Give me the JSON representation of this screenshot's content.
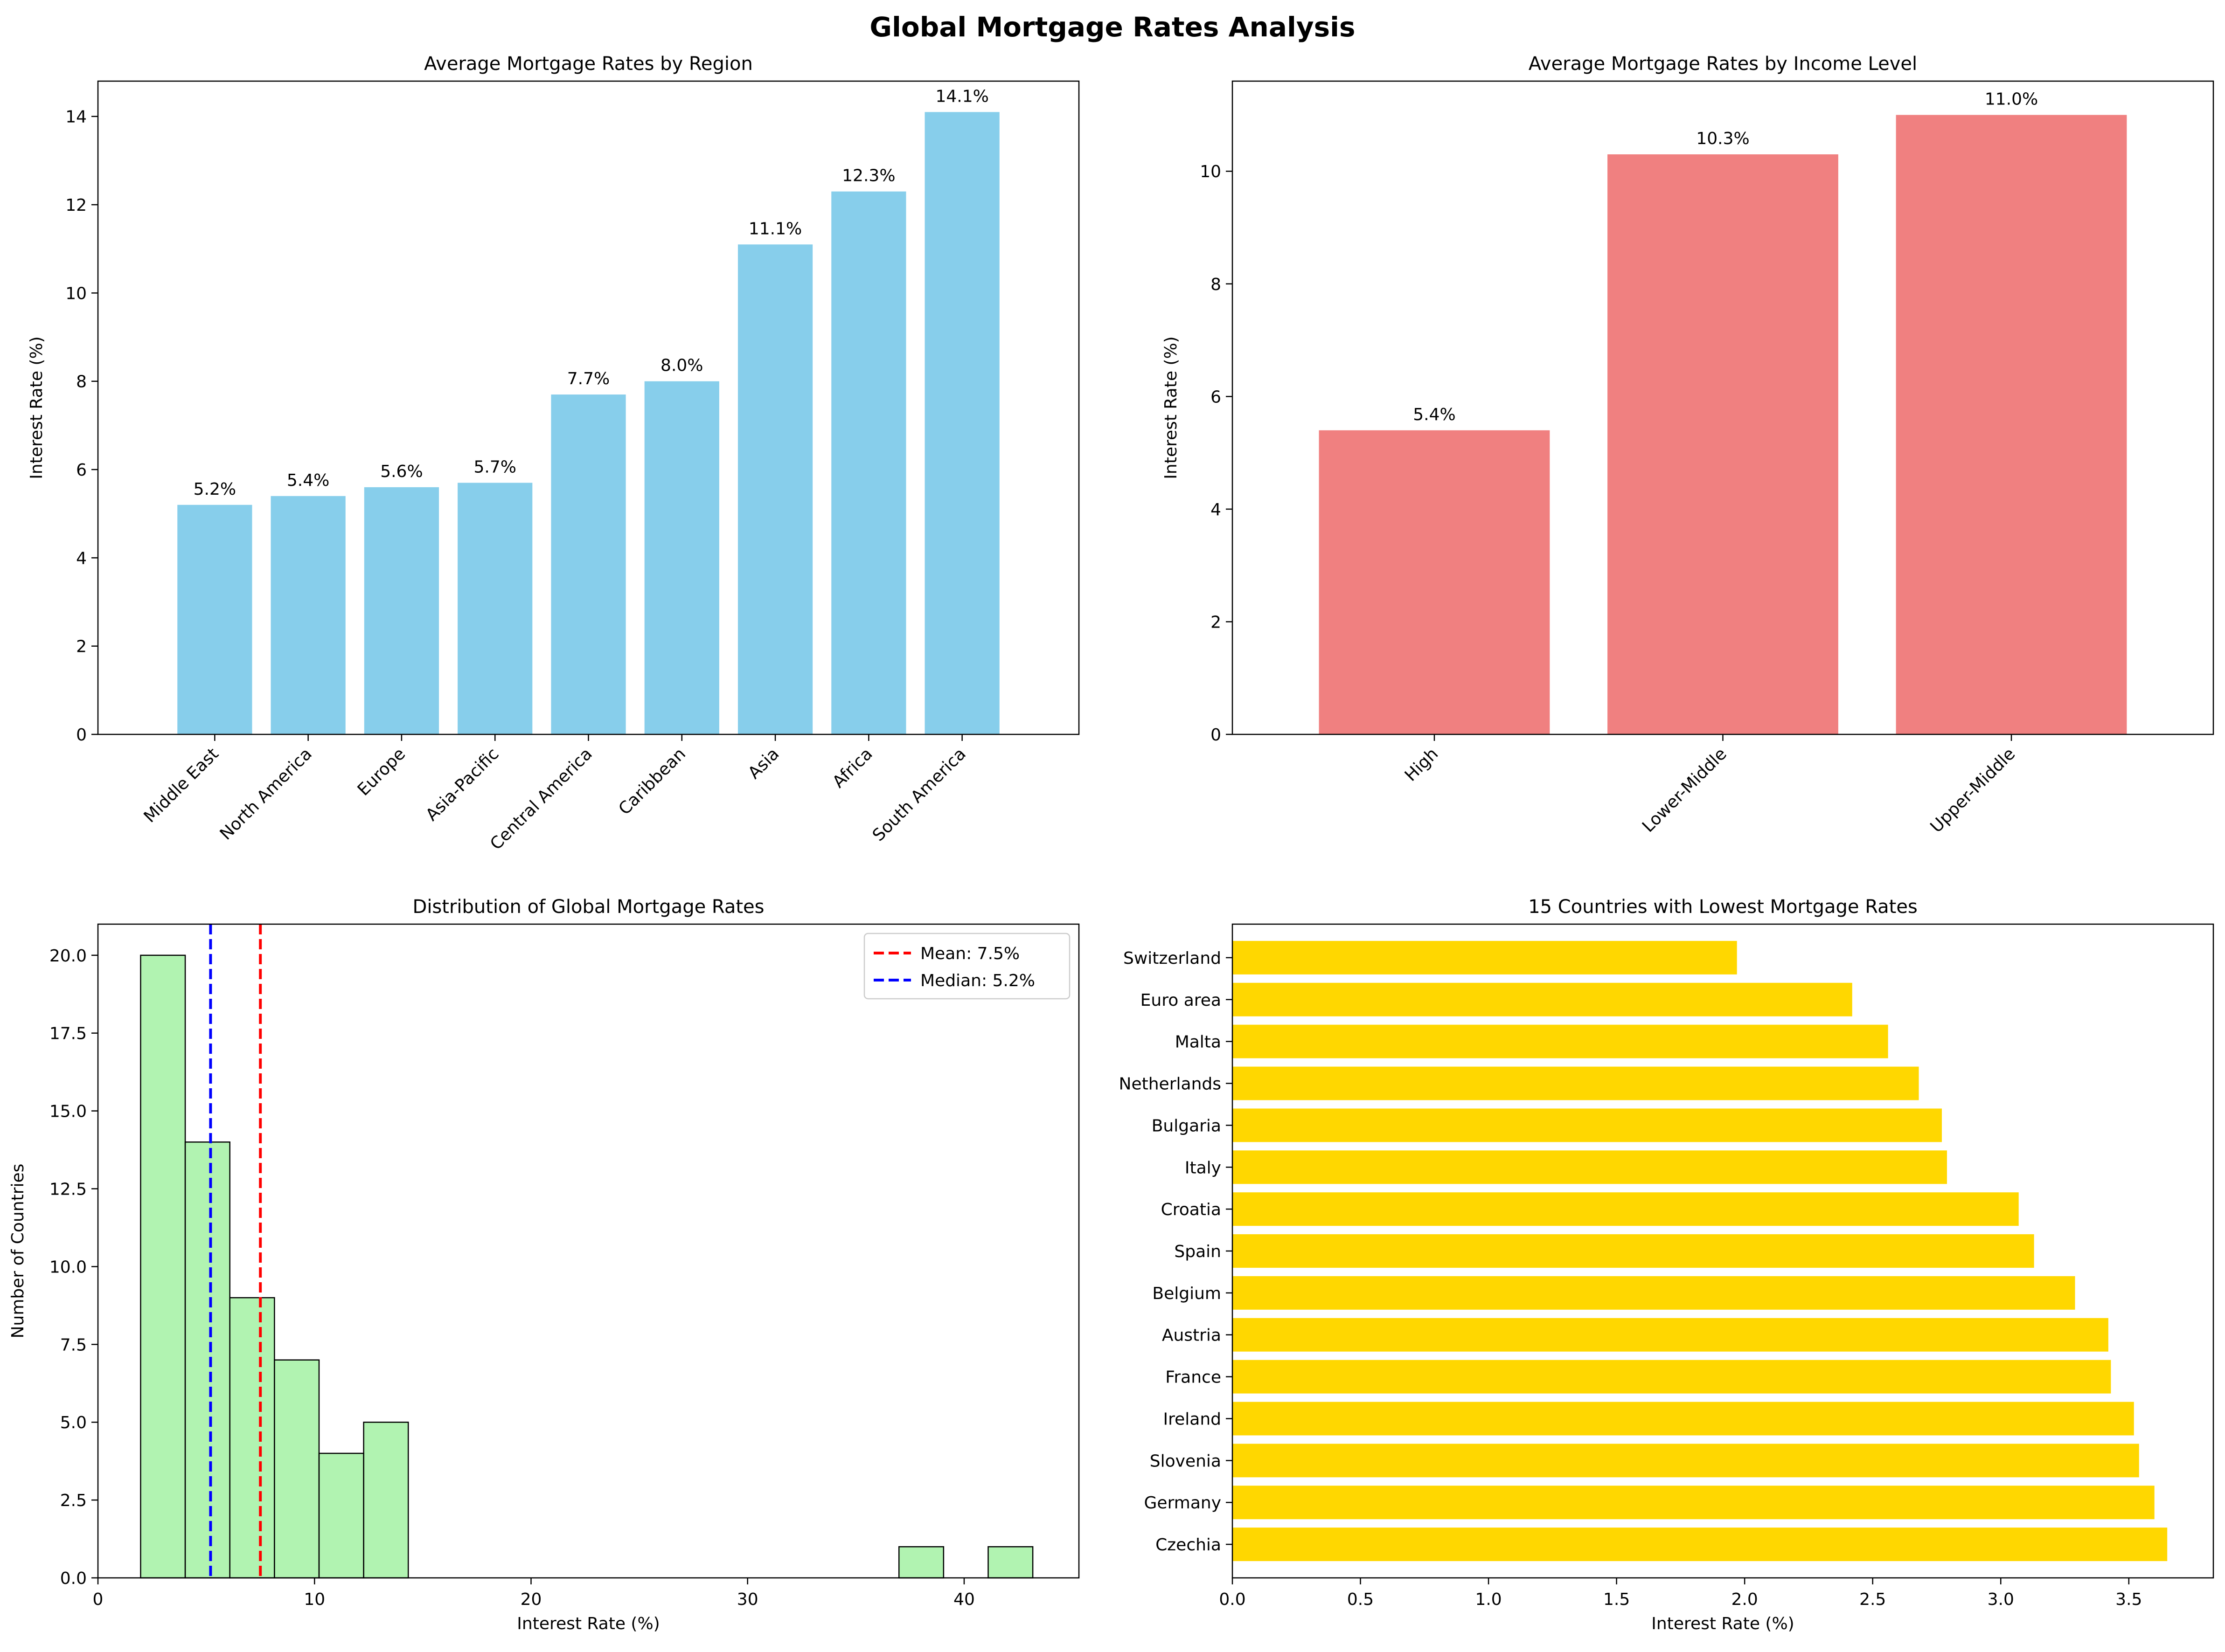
{
  "figure": {
    "title": "Global Mortgage Rates Analysis"
  },
  "chart_data": [
    {
      "type": "bar",
      "title": "Average Mortgage Rates by Region",
      "xlabel": "",
      "ylabel": "Interest Rate (%)",
      "categories": [
        "Middle East",
        "North America",
        "Europe",
        "Asia-Pacific",
        "Central America",
        "Caribbean",
        "Asia",
        "Africa",
        "South America"
      ],
      "values": [
        5.2,
        5.4,
        5.6,
        5.7,
        7.7,
        8.0,
        11.1,
        12.3,
        14.1
      ],
      "value_labels": [
        "5.2%",
        "5.4%",
        "5.6%",
        "5.7%",
        "7.7%",
        "8.0%",
        "11.1%",
        "12.3%",
        "14.1%"
      ],
      "ylim": [
        0,
        14.8
      ],
      "yticks": [
        0,
        2,
        4,
        6,
        8,
        10,
        12,
        14
      ],
      "color": "#87CEEB",
      "grid": false
    },
    {
      "type": "bar",
      "title": "Average Mortgage Rates by Income Level",
      "xlabel": "",
      "ylabel": "Interest Rate (%)",
      "categories": [
        "High",
        "Lower-Middle",
        "Upper-Middle"
      ],
      "values": [
        5.4,
        10.3,
        11.0
      ],
      "value_labels": [
        "5.4%",
        "10.3%",
        "11.0%"
      ],
      "ylim": [
        0,
        11.6
      ],
      "yticks": [
        0,
        2,
        4,
        6,
        8,
        10
      ],
      "color": "#F08080",
      "grid": false
    },
    {
      "type": "histogram",
      "title": "Distribution of Global Mortgage Rates",
      "xlabel": "Interest Rate (%)",
      "ylabel": "Number of Countries",
      "bin_start": 1.97,
      "bin_width": 2.06,
      "counts": [
        20,
        14,
        9,
        7,
        4,
        5,
        0,
        0,
        0,
        0,
        0,
        0,
        0,
        0,
        0,
        0,
        0,
        1,
        0,
        1
      ],
      "xlim": [
        0,
        45.3
      ],
      "ylim": [
        0,
        21
      ],
      "xticks": [
        0,
        10,
        20,
        30,
        40
      ],
      "yticks": [
        "0.0",
        "2.5",
        "5.0",
        "7.5",
        "10.0",
        "12.5",
        "15.0",
        "17.5",
        "20.0"
      ],
      "color": "#90EE90",
      "lines": [
        {
          "name": "Mean: 7.5%",
          "x": 7.5,
          "color": "#FF0000"
        },
        {
          "name": "Median: 5.2%",
          "x": 5.2,
          "color": "#0000FF"
        }
      ],
      "legend": "top-right",
      "grid": false
    },
    {
      "type": "barh",
      "title": "15 Countries with Lowest Mortgage Rates",
      "xlabel": "Interest Rate (%)",
      "ylabel": "",
      "categories": [
        "Switzerland",
        "Euro area",
        "Malta",
        "Netherlands",
        "Bulgaria",
        "Italy",
        "Croatia",
        "Spain",
        "Belgium",
        "Austria",
        "France",
        "Ireland",
        "Slovenia",
        "Germany",
        "Czechia"
      ],
      "values": [
        1.97,
        2.42,
        2.56,
        2.68,
        2.77,
        2.79,
        3.07,
        3.13,
        3.29,
        3.42,
        3.43,
        3.52,
        3.54,
        3.6,
        3.65
      ],
      "xlim": [
        0,
        3.83
      ],
      "xticks": [
        "0.0",
        "0.5",
        "1.0",
        "1.5",
        "2.0",
        "2.5",
        "3.0",
        "3.5"
      ],
      "color": "#FFD700",
      "grid": false
    }
  ]
}
